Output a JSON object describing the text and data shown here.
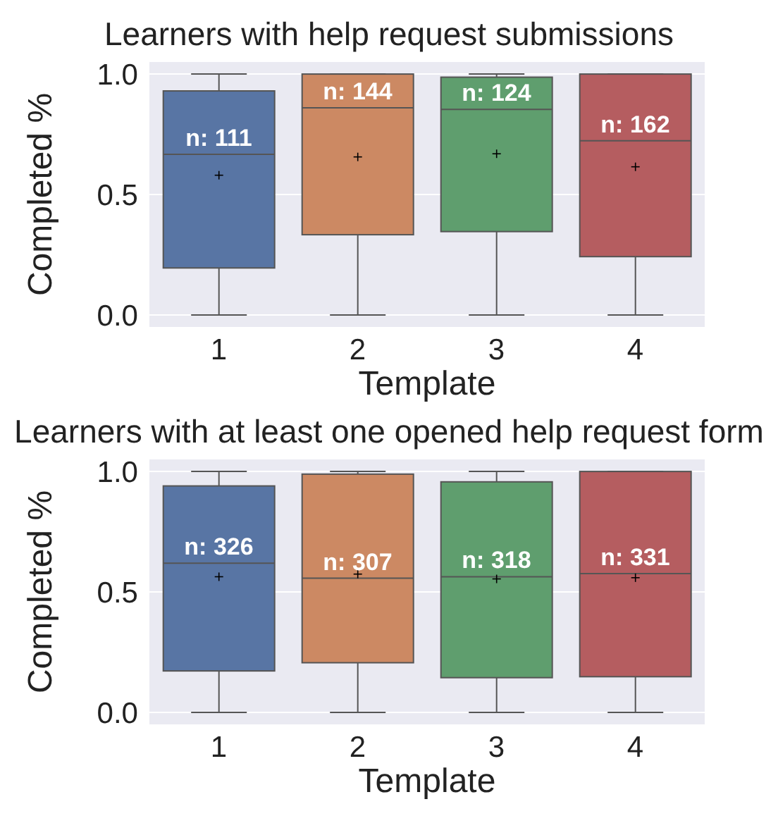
{
  "chart_data": [
    {
      "type": "box",
      "title": "Learners with help request submissions",
      "xlabel": "Template",
      "ylabel": "Completed %",
      "categories": [
        "1",
        "2",
        "3",
        "4"
      ],
      "colors": [
        "#5875a4",
        "#cc8963",
        "#5f9e6e",
        "#b55d60"
      ],
      "boxes": [
        {
          "low": 0,
          "q1": 0.195,
          "median": 0.667,
          "q3": 0.93,
          "high": 1,
          "mean": 0.58
        },
        {
          "low": 0,
          "q1": 0.333,
          "median": 0.86,
          "q3": 1,
          "high": 1,
          "mean": 0.656
        },
        {
          "low": 0,
          "q1": 0.346,
          "median": 0.853,
          "q3": 0.987,
          "high": 1,
          "mean": 0.669
        },
        {
          "low": 0,
          "q1": 0.242,
          "median": 0.723,
          "q3": 1,
          "high": 1,
          "mean": 0.615
        }
      ],
      "ylim": [
        -0.05,
        1.05
      ],
      "yticks": [
        {
          "value": 0,
          "label": "0.0"
        },
        {
          "value": 0.5,
          "label": "0.5"
        },
        {
          "value": 1,
          "label": "1.0"
        }
      ],
      "grid": "y",
      "annotations": [
        {
          "text": "n: 111",
          "x": "1",
          "y": 0.667
        },
        {
          "text": "n: 144",
          "x": "2",
          "y": 0.86
        },
        {
          "text": "n: 124",
          "x": "3",
          "y": 0.853
        },
        {
          "text": "n: 162",
          "x": "4",
          "y": 0.723
        }
      ]
    },
    {
      "type": "box",
      "title": "Learners with at least one opened help request form",
      "xlabel": "Template",
      "ylabel": "Completed %",
      "categories": [
        "1",
        "2",
        "3",
        "4"
      ],
      "colors": [
        "#5875a4",
        "#cc8963",
        "#5f9e6e",
        "#b55d60"
      ],
      "boxes": [
        {
          "low": 0,
          "q1": 0.172,
          "median": 0.619,
          "q3": 0.94,
          "high": 1,
          "mean": 0.563
        },
        {
          "low": 0,
          "q1": 0.206,
          "median": 0.557,
          "q3": 0.989,
          "high": 1,
          "mean": 0.574
        },
        {
          "low": 0,
          "q1": 0.144,
          "median": 0.563,
          "q3": 0.957,
          "high": 1,
          "mean": 0.554
        },
        {
          "low": 0,
          "q1": 0.148,
          "median": 0.576,
          "q3": 1,
          "high": 1,
          "mean": 0.559
        }
      ],
      "ylim": [
        -0.05,
        1.05
      ],
      "yticks": [
        {
          "value": 0,
          "label": "0.0"
        },
        {
          "value": 0.5,
          "label": "0.5"
        },
        {
          "value": 1,
          "label": "1.0"
        }
      ],
      "grid": "y",
      "annotations": [
        {
          "text": "n: 326",
          "x": "1",
          "y": 0.619
        },
        {
          "text": "n: 307",
          "x": "2",
          "y": 0.557
        },
        {
          "text": "n: 318",
          "x": "3",
          "y": 0.563
        },
        {
          "text": "n: 331",
          "x": "4",
          "y": 0.576
        }
      ]
    }
  ]
}
